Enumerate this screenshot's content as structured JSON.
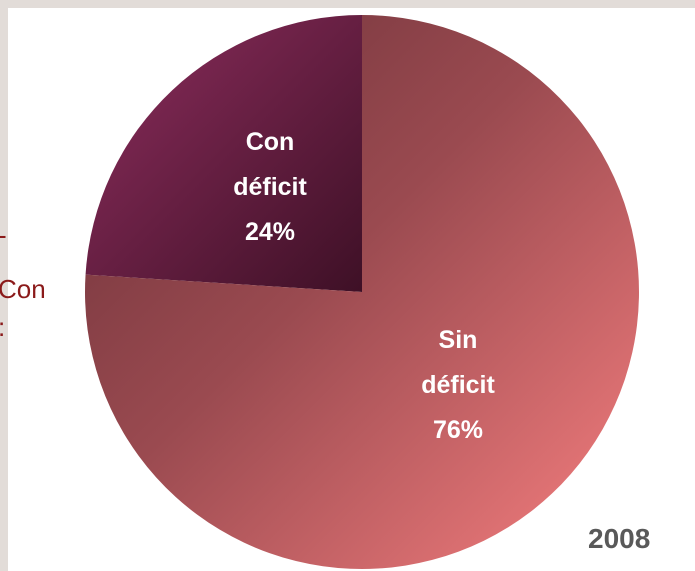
{
  "chart_data": {
    "type": "pie",
    "slices": [
      {
        "label_lines": [
          "Con",
          "déficit",
          "24%"
        ],
        "value": 24,
        "color": "#5a1a3a"
      },
      {
        "label_lines": [
          "Sin",
          "déficit",
          "76%"
        ],
        "value": 76,
        "color": "#c05a5e"
      }
    ],
    "annotation": "2008"
  },
  "side_text": {
    "top": "-",
    "middle": "Con",
    "bottom": ":"
  }
}
